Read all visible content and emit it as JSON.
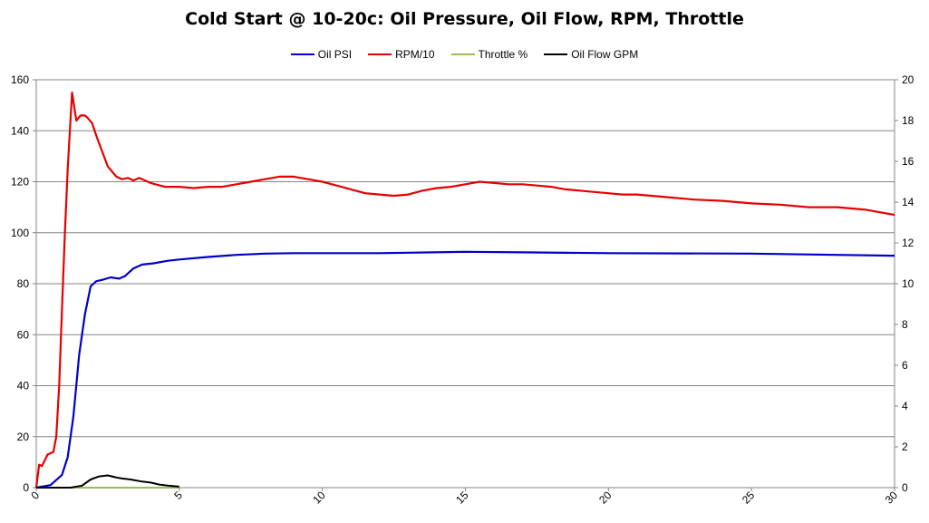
{
  "chart_data": {
    "type": "line",
    "title": "Cold Start @ 10-20c: Oil Pressure, Oil Flow, RPM, Throttle",
    "xlim": [
      0,
      30
    ],
    "ylim_left": [
      0,
      160
    ],
    "ylim_right": [
      0,
      20
    ],
    "x_ticks": [
      "0",
      "5",
      "10",
      "15",
      "20",
      "25",
      "30"
    ],
    "y_left_ticks": [
      "0",
      "20",
      "40",
      "60",
      "80",
      "100",
      "120",
      "140",
      "160"
    ],
    "y_right_ticks": [
      "0",
      "2",
      "4",
      "6",
      "8",
      "10",
      "12",
      "14",
      "16",
      "18",
      "20"
    ],
    "grid": "horizontal",
    "legend_position": "top",
    "series": [
      {
        "name": "Oil PSI",
        "color": "#0000cc",
        "axis": "left",
        "x": [
          0,
          0.5,
          0.9,
          1.1,
          1.3,
          1.5,
          1.7,
          1.9,
          2.1,
          2.3,
          2.6,
          2.9,
          3.1,
          3.4,
          3.7,
          4.1,
          4.6,
          5,
          6,
          7,
          8,
          9,
          10,
          12,
          15,
          17,
          20,
          25,
          30
        ],
        "y": [
          0,
          1,
          5,
          12,
          28,
          52,
          68,
          79,
          81,
          81.5,
          82.5,
          82,
          83,
          86,
          87.5,
          88,
          89,
          89.5,
          90.5,
          91.3,
          91.8,
          92,
          92,
          92,
          92.5,
          92.3,
          92,
          91.8,
          91
        ]
      },
      {
        "name": "RPM/10",
        "color": "#e60000",
        "axis": "left",
        "x": [
          0,
          0.1,
          0.2,
          0.4,
          0.6,
          0.7,
          0.8,
          0.9,
          1.0,
          1.1,
          1.25,
          1.4,
          1.55,
          1.7,
          1.8,
          1.95,
          2.1,
          2.3,
          2.5,
          2.8,
          3.0,
          3.2,
          3.4,
          3.6,
          3.8,
          4.0,
          4.5,
          5.0,
          5.5,
          6.0,
          6.5,
          7.0,
          7.5,
          8.0,
          8.5,
          9.0,
          9.5,
          10.0,
          10.5,
          11.0,
          11.5,
          12.0,
          12.5,
          13.0,
          13.5,
          14.0,
          14.5,
          15.0,
          15.5,
          16.0,
          16.5,
          17.0,
          17.5,
          18.0,
          18.5,
          19.0,
          19.5,
          20.0,
          20.5,
          21.0,
          22.0,
          23.0,
          24.0,
          25.0,
          26.0,
          27.0,
          28.0,
          29.0,
          30.0
        ],
        "y": [
          0,
          9,
          8.5,
          13,
          14,
          20,
          40,
          70,
          100,
          125,
          155,
          144,
          146,
          146,
          145,
          143,
          138,
          132,
          126,
          122,
          121,
          121.5,
          120.5,
          121.5,
          120.5,
          119.5,
          118,
          118,
          117.5,
          118,
          118,
          119,
          120,
          121,
          122,
          122,
          121,
          120,
          118.5,
          117,
          115.5,
          115,
          114.5,
          115,
          116.5,
          117.5,
          118,
          119,
          120,
          119.5,
          119,
          119,
          118.5,
          118,
          117,
          116.5,
          116,
          115.5,
          115,
          115,
          114,
          113,
          112.5,
          111.5,
          111,
          110,
          110,
          109,
          107
        ]
      },
      {
        "name": "Throttle %",
        "color": "#9bbb59",
        "axis": "right",
        "x": [
          0,
          5
        ],
        "y": [
          0,
          0
        ]
      },
      {
        "name": "Oil Flow GPM",
        "color": "#000000",
        "axis": "right",
        "x": [
          0,
          1.2,
          1.6,
          1.9,
          2.2,
          2.5,
          2.8,
          3.0,
          3.3,
          3.7,
          4.0,
          4.3,
          4.6,
          5.0
        ],
        "y": [
          0,
          0,
          0.1,
          0.4,
          0.55,
          0.6,
          0.5,
          0.45,
          0.4,
          0.3,
          0.25,
          0.15,
          0.1,
          0.05
        ]
      }
    ]
  }
}
